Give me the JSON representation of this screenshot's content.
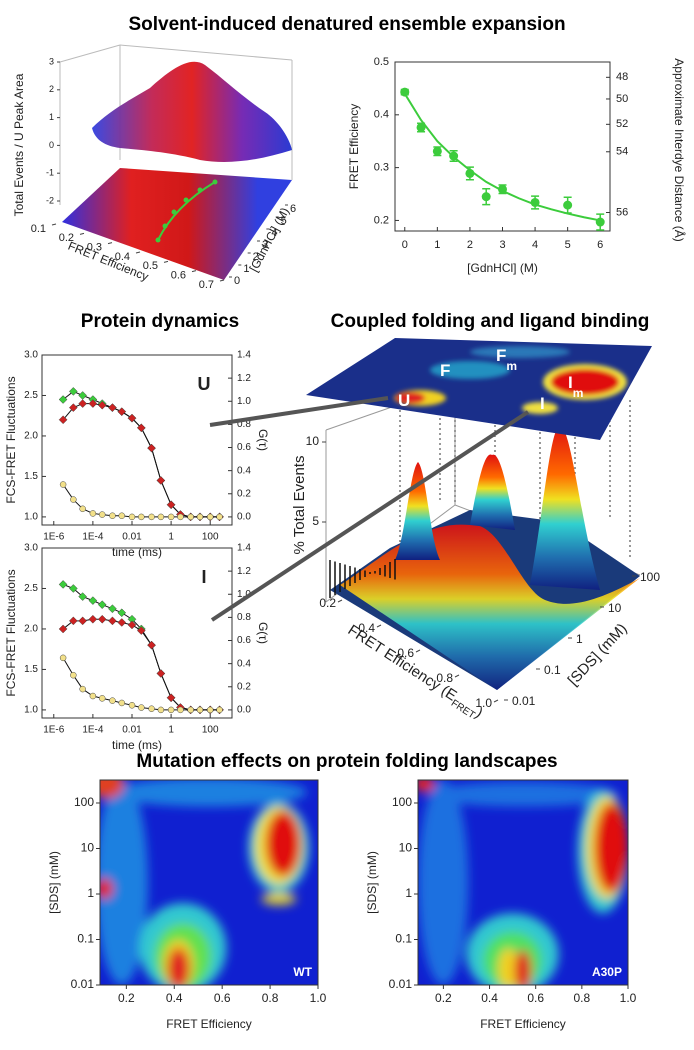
{
  "headings": [
    "Solvent-induced denatured ensemble expansion",
    "Protein dynamics",
    "Coupled folding and ligand binding",
    "Mutation effects on protein folding landscapes"
  ],
  "chart_data": [
    {
      "type": "surface3d",
      "zlabel": "Total Events / U Peak Area",
      "xlabel": "FRET Efficiency",
      "ylabel": "[GdnHCl] (M)",
      "zticks": [
        -2,
        -1,
        0,
        1,
        2,
        3
      ],
      "xticks": [
        0.1,
        0.2,
        0.3,
        0.4,
        0.5,
        0.6,
        0.7
      ],
      "yticks": [
        0,
        1,
        2,
        3,
        4,
        5,
        6
      ]
    },
    {
      "type": "scatter",
      "xlabel": "[GdnHCl] (M)",
      "ylabel": "FRET Efficiency",
      "y2label": "Approximate Interdye Distance (Å)",
      "x": [
        0,
        0.5,
        1,
        1.5,
        2,
        2.5,
        3,
        4,
        5,
        6
      ],
      "values": [
        0.443,
        0.376,
        0.331,
        0.322,
        0.289,
        0.245,
        0.259,
        0.234,
        0.229,
        0.197
      ],
      "errors": [
        0.005,
        0.008,
        0.008,
        0.01,
        0.012,
        0.015,
        0.008,
        0.012,
        0.015,
        0.015
      ],
      "color": "#3ccc3c",
      "fit": {
        "x": [
          0,
          0.5,
          1,
          1.5,
          2,
          2.5,
          3,
          3.5,
          4,
          4.5,
          5,
          5.5,
          6
        ],
        "values": [
          0.44,
          0.39,
          0.35,
          0.32,
          0.295,
          0.273,
          0.256,
          0.242,
          0.23,
          0.221,
          0.213,
          0.206,
          0.2
        ]
      },
      "xlim": [
        -0.3,
        6.3
      ],
      "ylim": [
        0.18,
        0.5
      ],
      "xticks": [
        0,
        1,
        2,
        3,
        4,
        5,
        6
      ],
      "yticks": [
        0.2,
        0.3,
        0.4,
        0.5
      ],
      "y2ticks": [
        {
          "value": 48,
          "at": 0.471
        },
        {
          "value": 50,
          "at": 0.43
        },
        {
          "value": 52,
          "at": 0.382
        },
        {
          "value": 54,
          "at": 0.33
        },
        {
          "value": 56,
          "at": 0.215
        }
      ]
    },
    {
      "type": "fcs",
      "label": "U",
      "xlabel": "time (ms)",
      "ylabel": "FCS-FRET Fluctuations",
      "y2label": "G(τ)",
      "log_x": true,
      "x": [
        3e-06,
        1e-05,
        3e-05,
        0.0001,
        0.0003,
        0.001,
        0.003,
        0.01,
        0.03,
        0.1,
        0.3,
        1,
        3,
        10,
        30,
        100,
        300
      ],
      "series": [
        {
          "color": "#3ccc3c",
          "marker": "diamond",
          "values": [
            2.45,
            2.55,
            2.5,
            2.45,
            2.4,
            2.35,
            2.3,
            2.22,
            2.1,
            1.85,
            1.45,
            1.15,
            1.03,
            1.0,
            1.0,
            1.0,
            1.0
          ]
        },
        {
          "color": "#cc2222",
          "marker": "diamond",
          "values": [
            2.2,
            2.35,
            2.4,
            2.4,
            2.38,
            2.35,
            2.3,
            2.22,
            2.1,
            1.85,
            1.45,
            1.15,
            1.03,
            1.0,
            1.0,
            1.0,
            1.0
          ]
        },
        {
          "color": "#f2e08a",
          "marker": "circle",
          "axis": "y2",
          "values": [
            0.28,
            0.15,
            0.07,
            0.03,
            0.02,
            0.01,
            0.01,
            0.0,
            0.0,
            0.0,
            0.0,
            0.0,
            0.0,
            0.0,
            0.0,
            0.0,
            0.0
          ]
        }
      ],
      "xlim": [
        2.5e-07,
        1300
      ],
      "xticks": [
        {
          "value": 1e-06,
          "label": "1E-6"
        },
        {
          "value": 0.0001,
          "label": "1E-4"
        },
        0.01,
        1,
        100
      ],
      "ylim": [
        0.9,
        3.0
      ],
      "yticks": [
        {
          "value": 1,
          "label": "1.0"
        },
        {
          "value": 1.5,
          "label": "1.5"
        },
        {
          "value": 2,
          "label": "2.0"
        },
        {
          "value": 2.5,
          "label": "2.5"
        },
        {
          "value": 3,
          "label": "3.0"
        }
      ],
      "y2lim": [
        -0.07,
        1.4
      ],
      "y2ticks": [
        {
          "value": 0,
          "label": "0.0"
        },
        0.2,
        0.4,
        0.6,
        0.8,
        {
          "value": 1,
          "label": "1.0"
        },
        1.2,
        1.4
      ]
    },
    {
      "type": "fcs",
      "label": "I",
      "xlabel": "time (ms)",
      "ylabel": "FCS-FRET Fluctuations",
      "y2label": "G(τ)",
      "log_x": true,
      "x": [
        3e-06,
        1e-05,
        3e-05,
        0.0001,
        0.0003,
        0.001,
        0.003,
        0.01,
        0.03,
        0.1,
        0.3,
        1,
        3,
        10,
        30,
        100,
        300
      ],
      "series": [
        {
          "color": "#3ccc3c",
          "marker": "diamond",
          "values": [
            2.55,
            2.5,
            2.4,
            2.35,
            2.3,
            2.25,
            2.2,
            2.12,
            2.0,
            1.8,
            1.45,
            1.15,
            1.03,
            1.0,
            1.0,
            1.0,
            1.0
          ]
        },
        {
          "color": "#cc2222",
          "marker": "diamond",
          "values": [
            2.0,
            2.1,
            2.1,
            2.12,
            2.12,
            2.1,
            2.08,
            2.05,
            1.98,
            1.8,
            1.45,
            1.15,
            1.03,
            1.0,
            1.0,
            1.0,
            1.0
          ]
        },
        {
          "color": "#f2e08a",
          "marker": "circle",
          "axis": "y2",
          "values": [
            0.45,
            0.3,
            0.18,
            0.12,
            0.1,
            0.08,
            0.06,
            0.04,
            0.02,
            0.01,
            0.0,
            0.0,
            0.0,
            0.0,
            0.0,
            0.0,
            0.0
          ]
        }
      ],
      "xlim": [
        2.5e-07,
        1300
      ],
      "xticks": [
        {
          "value": 1e-06,
          "label": "1E-6"
        },
        {
          "value": 0.0001,
          "label": "1E-4"
        },
        0.01,
        1,
        100
      ],
      "ylim": [
        0.9,
        3.0
      ],
      "yticks": [
        {
          "value": 1,
          "label": "1.0"
        },
        {
          "value": 1.5,
          "label": "1.5"
        },
        {
          "value": 2,
          "label": "2.0"
        },
        {
          "value": 2.5,
          "label": "2.5"
        },
        {
          "value": 3,
          "label": "3.0"
        }
      ],
      "y2lim": [
        -0.07,
        1.4
      ],
      "y2ticks": [
        {
          "value": 0,
          "label": "0.0"
        },
        0.2,
        0.4,
        0.6,
        0.8,
        {
          "value": 1,
          "label": "1.0"
        },
        1.2,
        1.4
      ]
    },
    {
      "type": "landscape3d",
      "zlabel": "% Total Events",
      "xlabel": {
        "text": "FRET Efficiency (E",
        "sub": "FRET",
        "tail": ")"
      },
      "ylabel": "[SDS] (mM)",
      "zticks": [
        5,
        10
      ],
      "xticks": [
        0.2,
        0.4,
        0.6,
        0.8,
        {
          "value": 1,
          "label": "1.0"
        }
      ],
      "yticks": [
        0.01,
        0.1,
        1,
        10,
        100
      ],
      "map_labels": [
        {
          "text": "U"
        },
        {
          "text": "F"
        },
        {
          "text": "F",
          "sub": "m"
        },
        {
          "text": "I"
        },
        {
          "text": "I",
          "sub": "m"
        }
      ]
    },
    {
      "type": "heatmap",
      "tag": "WT",
      "xlabel": "FRET Efficiency",
      "ylabel": "[SDS] (mM)",
      "xlim": [
        0.09,
        1.0
      ],
      "ylim": [
        0.01,
        320
      ],
      "log_y": true,
      "xticks": [
        0.2,
        0.4,
        0.6,
        0.8,
        {
          "value": 1,
          "label": "1.0"
        }
      ],
      "yticks": [
        0.01,
        0.1,
        1,
        10,
        100
      ]
    },
    {
      "type": "heatmap",
      "tag": "A30P",
      "xlabel": "FRET Efficiency",
      "ylabel": "[SDS] (mM)",
      "xlim": [
        0.09,
        1.0
      ],
      "ylim": [
        0.01,
        320
      ],
      "log_y": true,
      "xticks": [
        0.2,
        0.4,
        0.6,
        0.8,
        {
          "value": 1,
          "label": "1.0"
        }
      ],
      "yticks": [
        0.01,
        0.1,
        1,
        10,
        100
      ]
    }
  ]
}
